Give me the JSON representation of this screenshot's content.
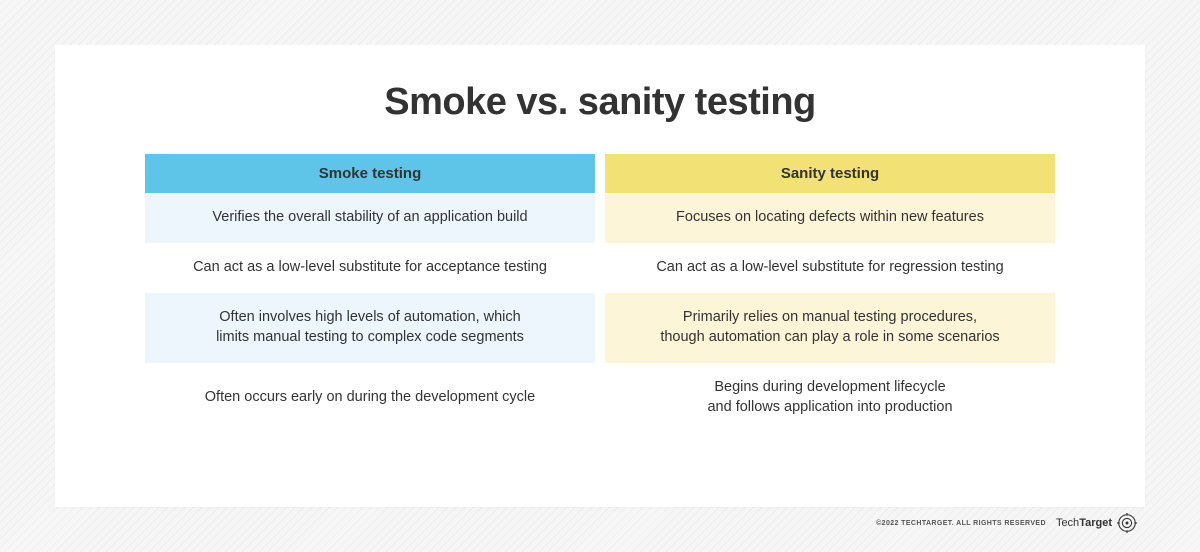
{
  "title": "Smoke vs. sanity testing",
  "table": {
    "type": "comparison-table",
    "columns": [
      {
        "header": "Smoke testing",
        "header_bg": "#5ec5e8",
        "row_colors_alt": [
          "#ecf6fc",
          "#ffffff"
        ],
        "rows": [
          "Verifies the overall stability of an application build",
          "Can act as a low-level substitute for acceptance testing",
          "Often involves high levels of automation, which\nlimits manual testing to complex code segments",
          "Often occurs early on during the development cycle"
        ]
      },
      {
        "header": "Sanity testing",
        "header_bg": "#f2e174",
        "row_colors_alt": [
          "#fcf5d8",
          "#ffffff"
        ],
        "rows": [
          "Focuses on locating defects within new features",
          "Can act as a low-level substitute for regression testing",
          "Primarily relies on manual testing procedures,\nthough automation can play a role in some scenarios",
          "Begins during development lifecycle\nand follows application into production"
        ]
      }
    ]
  },
  "footer": {
    "copyright": "©2022 TECHTARGET. ALL RIGHTS RESERVED",
    "logo_light": "Tech",
    "logo_bold": "Target"
  },
  "styling": {
    "page_bg": "#f6f6f6",
    "page_hatch": "#ededed",
    "card_bg": "#ffffff",
    "title_color": "#333333",
    "title_fontsize": 38,
    "cell_text_color": "#333333",
    "header_fontsize": 15,
    "row_fontsize": 14.5
  }
}
